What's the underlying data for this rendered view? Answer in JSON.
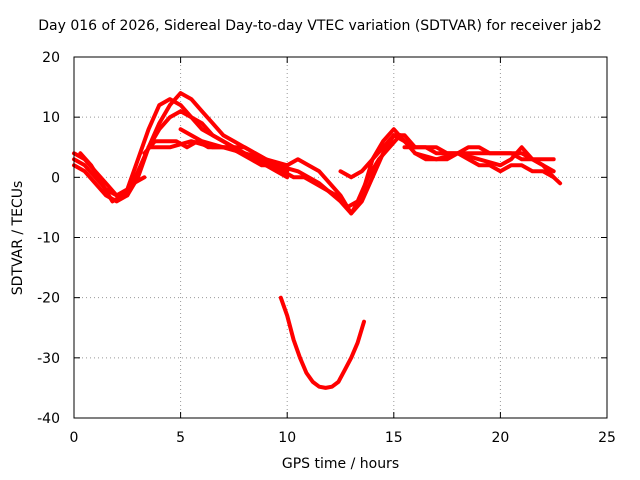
{
  "chart_data": {
    "type": "line",
    "title": "Day 016 of 2026, Sidereal Day-to-day VTEC variation (SDTVAR) for receiver jab2",
    "xlabel": "GPS time / hours",
    "ylabel": "SDTVAR / TECUs",
    "xlim": [
      0,
      25
    ],
    "ylim": [
      -40,
      20
    ],
    "xticks": [
      0,
      5,
      10,
      15,
      20,
      25
    ],
    "yticks": [
      -40,
      -30,
      -20,
      -10,
      0,
      10,
      20
    ],
    "grid": true,
    "line_color": "#ff0000",
    "series": [
      {
        "name": "trace-1",
        "x": [
          0,
          0.5,
          1.0,
          1.5,
          2.0,
          2.5,
          3.0,
          3.5,
          4.0,
          4.5,
          5.0,
          5.5,
          6.0,
          6.5,
          7.0,
          7.5,
          8.0,
          8.5,
          9.0,
          9.5,
          10.0
        ],
        "y": [
          3,
          2,
          0,
          -2,
          -3,
          -3,
          0,
          5,
          9,
          12,
          14,
          13,
          11,
          9,
          7,
          6,
          5,
          4,
          3,
          2,
          2
        ]
      },
      {
        "name": "trace-2",
        "x": [
          0,
          0.5,
          1.0,
          1.5,
          2.0,
          2.5,
          3.0,
          3.5,
          4.0,
          4.5,
          5.0,
          5.5,
          6.0,
          6.5,
          7.0,
          7.5,
          8.0,
          8.5,
          9.0,
          9.5,
          10.0
        ],
        "y": [
          4,
          3,
          1,
          -1,
          -3,
          -2,
          3,
          8,
          12,
          13,
          12,
          10,
          8,
          7,
          6,
          5,
          5,
          4,
          3,
          2,
          1
        ]
      },
      {
        "name": "trace-3",
        "x": [
          0,
          0.5,
          1.0,
          1.5,
          2.0,
          2.5,
          3.0,
          3.5,
          4.0,
          4.5,
          5.0,
          5.5,
          6.0,
          6.5,
          7.0,
          7.5,
          8.0,
          8.5,
          9.0,
          9.5,
          10.0
        ],
        "y": [
          2,
          1,
          -1,
          -3,
          -4,
          -3,
          1,
          5,
          8,
          10,
          11,
          10,
          9,
          7,
          6,
          5,
          4,
          3,
          2,
          1,
          0
        ]
      },
      {
        "name": "trace-4",
        "x": [
          0.3,
          0.8,
          1.3,
          1.8,
          2.3,
          2.8,
          3.3
        ],
        "y": [
          4,
          2,
          -1,
          -4,
          -3,
          -1,
          0
        ]
      },
      {
        "name": "trace-5",
        "x": [
          3.3,
          3.8,
          4.3,
          4.8,
          5.3,
          5.8,
          6.3,
          6.8,
          7.3,
          7.8,
          8.3,
          8.8,
          9.3,
          9.8,
          10.3,
          10.8,
          11.3,
          11.8,
          12.3,
          12.8,
          13.3,
          13.8,
          14.3,
          14.8,
          15.3
        ],
        "y": [
          4,
          6,
          6,
          6,
          5,
          6,
          5,
          5,
          5,
          4,
          3,
          2,
          2,
          1,
          0,
          0,
          -1,
          -2,
          -3,
          -5,
          -4,
          0,
          3,
          5,
          7
        ]
      },
      {
        "name": "trace-6",
        "x": [
          3.5,
          4.5,
          5.5,
          6.5,
          7.5,
          8.5,
          9.5,
          10.5,
          11.5,
          12.5,
          13.0,
          13.5,
          14.0,
          14.5,
          15.0,
          15.5,
          16.0
        ],
        "y": [
          5,
          5,
          6,
          5,
          5,
          3,
          2,
          1,
          -1,
          -4,
          -6,
          -4,
          0,
          4,
          7,
          7,
          5
        ]
      },
      {
        "name": "trace-7",
        "x": [
          5.0,
          6.0,
          7.0,
          8.0,
          9.0,
          10.0,
          10.5,
          11.0,
          11.5,
          12.0,
          12.5,
          13.0,
          13.5,
          14.0,
          14.5,
          15.0,
          15.5,
          16.0,
          16.5,
          17.0,
          17.5,
          18.0,
          18.5,
          19.0,
          19.5,
          20.0,
          20.5,
          21.0,
          21.5,
          22.0,
          22.5
        ],
        "y": [
          8,
          6,
          5,
          4,
          3,
          2,
          3,
          2,
          1,
          -1,
          -3,
          -6,
          -3,
          3,
          6,
          8,
          6,
          4,
          3,
          3,
          3,
          4,
          3,
          2,
          2,
          1,
          2,
          2,
          1,
          1,
          0
        ]
      },
      {
        "name": "trace-8",
        "x": [
          12.5,
          13.0,
          13.5,
          14.0,
          14.5,
          15.0,
          15.5,
          16.0,
          16.5,
          17.0,
          17.5,
          18.0,
          18.5,
          19.0,
          19.5,
          20.0,
          20.5,
          21.0,
          21.5,
          22.0,
          22.5
        ],
        "y": [
          1,
          0,
          1,
          3,
          5,
          7,
          6,
          5,
          5,
          5,
          4,
          4,
          4,
          4,
          4,
          4,
          4,
          4,
          3,
          3,
          3
        ]
      },
      {
        "name": "trace-9",
        "x": [
          15.5,
          16.0,
          16.5,
          17.0,
          17.5,
          18.0,
          18.5,
          19.0,
          19.5,
          20.0,
          20.5,
          21.0,
          21.5,
          22.0,
          22.5
        ],
        "y": [
          5,
          5,
          5,
          4,
          4,
          4,
          5,
          5,
          4,
          4,
          4,
          3,
          3,
          2,
          1
        ]
      },
      {
        "name": "trace-10",
        "x": [
          16.0,
          17.0,
          18.0,
          19.0,
          20.0,
          20.5,
          21.0,
          21.5,
          22.0,
          22.5,
          22.8
        ],
        "y": [
          4,
          3,
          4,
          3,
          2,
          3,
          5,
          3,
          2,
          0,
          -1
        ]
      },
      {
        "name": "outlier-arc",
        "x": [
          9.7,
          10.0,
          10.3,
          10.6,
          10.9,
          11.2,
          11.5,
          11.8,
          12.1,
          12.4,
          12.7,
          13.0,
          13.3,
          13.6
        ],
        "y": [
          -20,
          -23,
          -27,
          -30,
          -32.5,
          -34,
          -34.8,
          -35,
          -34.8,
          -34,
          -32,
          -30,
          -27.5,
          -24
        ]
      }
    ]
  }
}
